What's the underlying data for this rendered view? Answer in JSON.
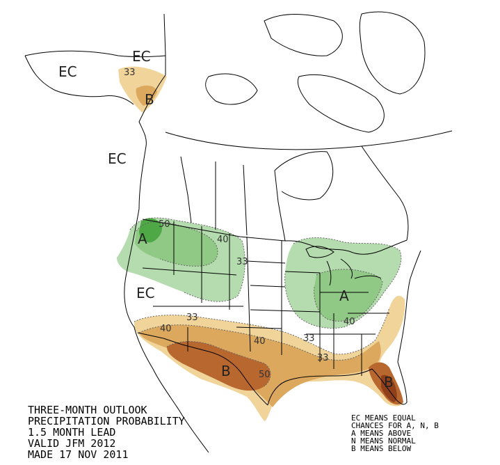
{
  "map": {
    "title_lines": [
      "THREE-MONTH OUTLOOK",
      "PRECIPITATION PROBABILITY",
      "1.5 MONTH LEAD",
      "VALID JFM 2012",
      "MADE 17 NOV 2011"
    ],
    "legend_lines": [
      "EC MEANS EQUAL",
      "CHANCES FOR A, N, B",
      "A MEANS ABOVE",
      "N MEANS NORMAL",
      "B MEANS BELOW"
    ],
    "region_labels": {
      "ec_alaska_west": "EC",
      "ec_alaska_north": "EC",
      "b_alaska": "B",
      "ec_bc": "EC",
      "a_northwest": "A",
      "a_ohio_valley": "A",
      "ec_california": "EC",
      "b_texas": "B",
      "b_florida": "B"
    },
    "contour_labels": {
      "alaska_33": "33",
      "nw_50": "50",
      "nw_40": "40",
      "nw_33": "33",
      "ov_40": "40",
      "ov_33": "33",
      "south_40_w": "40",
      "south_33_w": "33",
      "south_40_c": "40",
      "south_50": "50",
      "gulf_33": "33"
    },
    "colors": {
      "above_33": "#b5dcae",
      "above_40": "#8fc985",
      "above_50": "#4ea845",
      "below_33": "#f1d49a",
      "below_40": "#dba85e",
      "below_50": "#b8672f",
      "below_60": "#8f3f1a",
      "boundary": "#000000",
      "contour": "#888888"
    }
  }
}
